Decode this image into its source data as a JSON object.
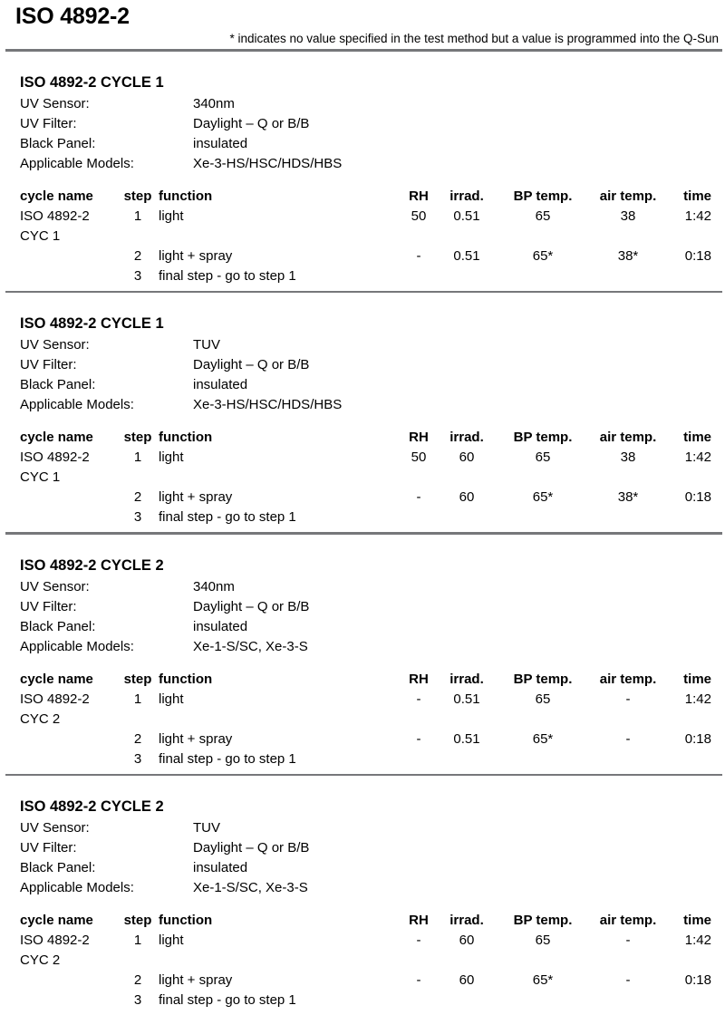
{
  "page": {
    "title": "ISO 4892-2",
    "footnote": "* indicates no value specified in the test method but a value is programmed into the Q-Sun"
  },
  "table_headers": {
    "cycle_name": "cycle name",
    "step": "step",
    "function": "function",
    "rh": "RH",
    "irrad": "irrad.",
    "bp_temp": "BP temp.",
    "air_temp": "air temp.",
    "time": "time"
  },
  "sections": [
    {
      "heading": "ISO 4892-2 CYCLE 1",
      "properties": [
        {
          "label": "UV Sensor:",
          "value": "340nm"
        },
        {
          "label": "UV Filter:",
          "value": "Daylight – Q or B/B"
        },
        {
          "label": "Black Panel:",
          "value": "insulated"
        },
        {
          "label": "Applicable Models:",
          "value": "Xe-3-HS/HSC/HDS/HBS"
        }
      ],
      "rows": [
        {
          "cycle_name": "ISO 4892-2 CYC 1",
          "step": "1",
          "function": "light",
          "rh": "50",
          "irrad": "0.51",
          "bp_temp": "65",
          "air_temp": "38",
          "time": "1:42"
        },
        {
          "cycle_name": "",
          "step": "2",
          "function": "light + spray",
          "rh": "-",
          "irrad": "0.51",
          "bp_temp": "65*",
          "air_temp": "38*",
          "time": "0:18"
        },
        {
          "cycle_name": "",
          "step": "3",
          "function": "final step - go to step 1",
          "rh": "",
          "irrad": "",
          "bp_temp": "",
          "air_temp": "",
          "time": ""
        }
      ]
    },
    {
      "heading": "ISO 4892-2 CYCLE 1",
      "properties": [
        {
          "label": "UV Sensor:",
          "value": "TUV"
        },
        {
          "label": "UV Filter:",
          "value": "Daylight – Q or B/B"
        },
        {
          "label": "Black Panel:",
          "value": "insulated"
        },
        {
          "label": "Applicable Models:",
          "value": "Xe-3-HS/HSC/HDS/HBS"
        }
      ],
      "rows": [
        {
          "cycle_name": "ISO 4892-2 CYC 1",
          "step": "1",
          "function": "light",
          "rh": "50",
          "irrad": "60",
          "bp_temp": "65",
          "air_temp": "38",
          "time": "1:42"
        },
        {
          "cycle_name": "",
          "step": "2",
          "function": "light + spray",
          "rh": "-",
          "irrad": "60",
          "bp_temp": "65*",
          "air_temp": "38*",
          "time": "0:18"
        },
        {
          "cycle_name": "",
          "step": "3",
          "function": "final step - go to step 1",
          "rh": "",
          "irrad": "",
          "bp_temp": "",
          "air_temp": "",
          "time": ""
        }
      ]
    },
    {
      "heading": "ISO 4892-2 CYCLE 2",
      "properties": [
        {
          "label": "UV Sensor:",
          "value": "340nm"
        },
        {
          "label": "UV Filter:",
          "value": "Daylight – Q or B/B"
        },
        {
          "label": "Black Panel:",
          "value": "insulated"
        },
        {
          "label": "Applicable Models:",
          "value": "Xe-1-S/SC, Xe-3-S"
        }
      ],
      "rows": [
        {
          "cycle_name": "ISO 4892-2 CYC 2",
          "step": "1",
          "function": "light",
          "rh": "-",
          "irrad": "0.51",
          "bp_temp": "65",
          "air_temp": "-",
          "time": "1:42"
        },
        {
          "cycle_name": "",
          "step": "2",
          "function": "light + spray",
          "rh": "-",
          "irrad": "0.51",
          "bp_temp": "65*",
          "air_temp": "-",
          "time": "0:18"
        },
        {
          "cycle_name": "",
          "step": "3",
          "function": "final step - go to step 1",
          "rh": "",
          "irrad": "",
          "bp_temp": "",
          "air_temp": "",
          "time": ""
        }
      ]
    },
    {
      "heading": "ISO 4892-2 CYCLE 2",
      "properties": [
        {
          "label": "UV Sensor:",
          "value": "TUV"
        },
        {
          "label": "UV Filter:",
          "value": "Daylight – Q or B/B"
        },
        {
          "label": "Black Panel:",
          "value": "insulated"
        },
        {
          "label": "Applicable Models:",
          "value": "Xe-1-S/SC, Xe-3-S"
        }
      ],
      "rows": [
        {
          "cycle_name": "ISO 4892-2 CYC 2",
          "step": "1",
          "function": "light",
          "rh": "-",
          "irrad": "60",
          "bp_temp": "65",
          "air_temp": "-",
          "time": "1:42"
        },
        {
          "cycle_name": "",
          "step": "2",
          "function": "light + spray",
          "rh": "-",
          "irrad": "60",
          "bp_temp": "65*",
          "air_temp": "-",
          "time": "0:18"
        },
        {
          "cycle_name": "",
          "step": "3",
          "function": "final step - go to step 1",
          "rh": "",
          "irrad": "",
          "bp_temp": "",
          "air_temp": "",
          "time": ""
        }
      ]
    }
  ]
}
